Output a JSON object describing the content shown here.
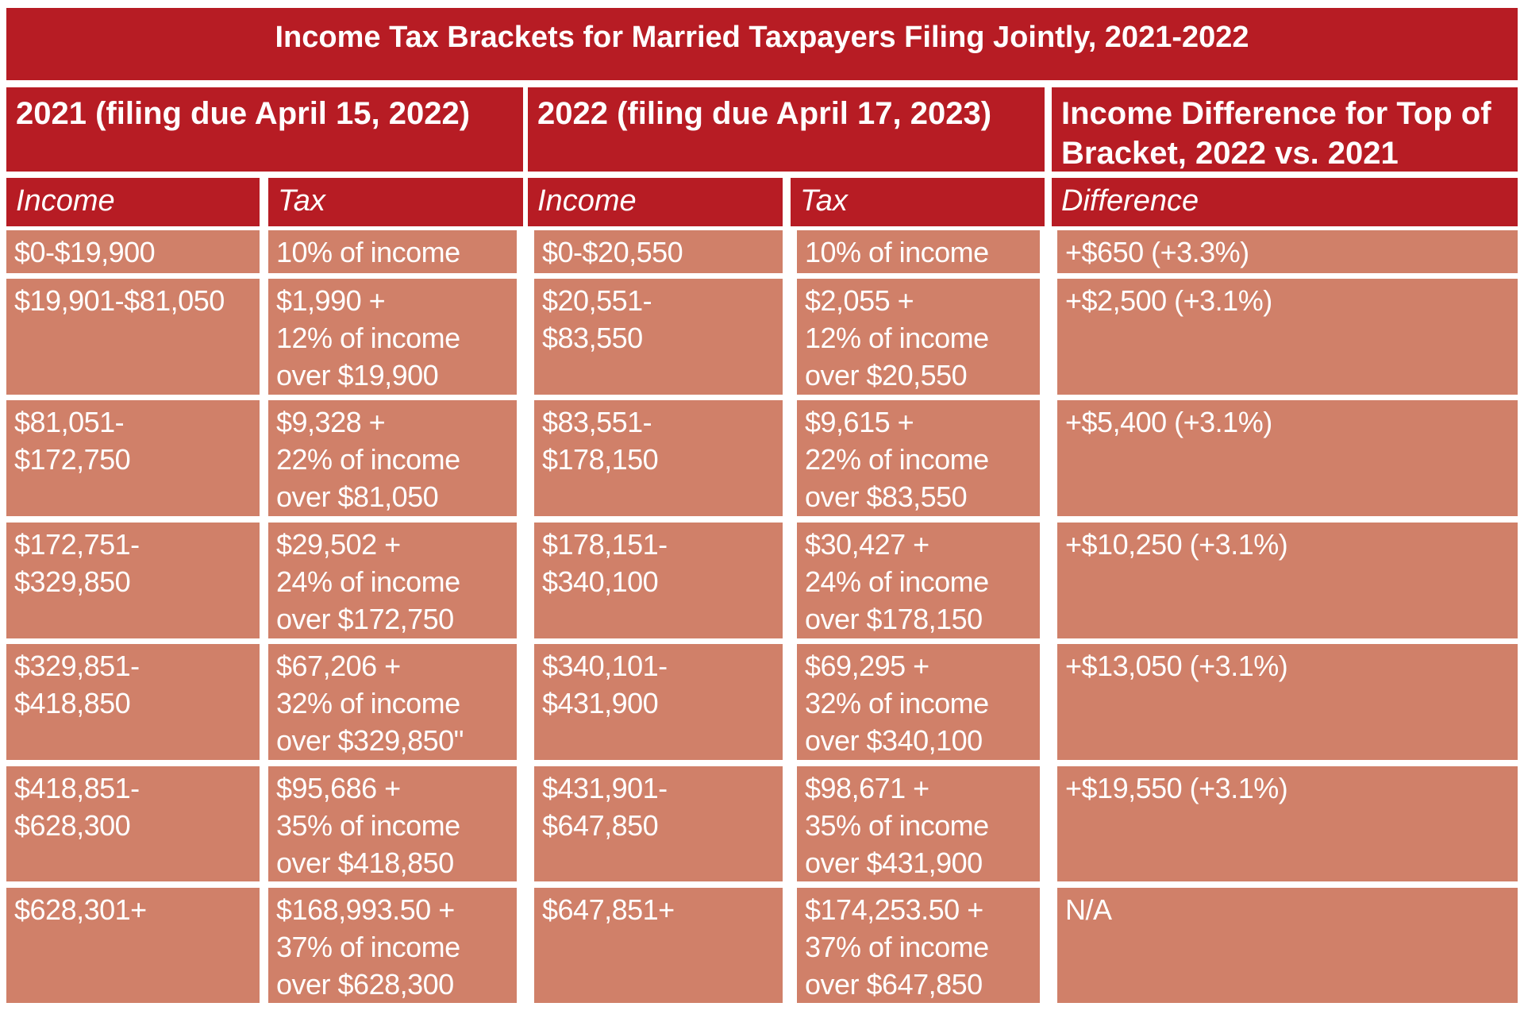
{
  "title": "Income Tax Brackets for Married Taxpayers Filing Jointly, 2021-2022",
  "group_headers": [
    "2021 (filing due April 15, 2022)",
    "2022 (filing due April 17, 2023)",
    "Income Difference for Top of Bracket, 2022 vs. 2021"
  ],
  "sub_headers": [
    "Income",
    "Tax",
    "Income",
    "Tax",
    "Difference"
  ],
  "colors": {
    "header": "#b71c24",
    "cell": "#d08069",
    "text": "#ffffff"
  },
  "rows": [
    [
      "$0-$19,900",
      "10% of income",
      "$0-$20,550",
      "10% of income",
      "+$650 (+3.3%)"
    ],
    [
      "$19,901-$81,050",
      "$1,990 +\n12% of income\nover $19,900",
      "$20,551-\n$83,550",
      "$2,055 +\n12% of income\nover $20,550",
      "+$2,500 (+3.1%)"
    ],
    [
      "$81,051-\n$172,750",
      "$9,328 +\n22% of income\nover $81,050",
      "$83,551-\n$178,150",
      "$9,615 +\n22% of income\nover $83,550",
      "+$5,400 (+3.1%)"
    ],
    [
      "$172,751-\n$329,850",
      "$29,502 +\n24% of income\nover $172,750",
      "$178,151-\n$340,100",
      "$30,427 +\n24% of income\nover $178,150",
      "+$10,250 (+3.1%)"
    ],
    [
      "$329,851-\n$418,850",
      "$67,206 +\n32% of income\nover $329,850\"",
      "$340,101-\n$431,900",
      "$69,295 +\n32% of income\nover $340,100",
      "+$13,050 (+3.1%)"
    ],
    [
      "$418,851-\n$628,300",
      "$95,686 +\n35% of income\nover $418,850",
      "$431,901-\n$647,850",
      "$98,671 +\n35% of income\nover $431,900",
      "+$19,550 (+3.1%)"
    ],
    [
      "$628,301+",
      "$168,993.50 +\n37% of income\nover $628,300",
      "$647,851+",
      "$174,253.50 +\n37% of income\nover $647,850",
      "N/A"
    ]
  ]
}
